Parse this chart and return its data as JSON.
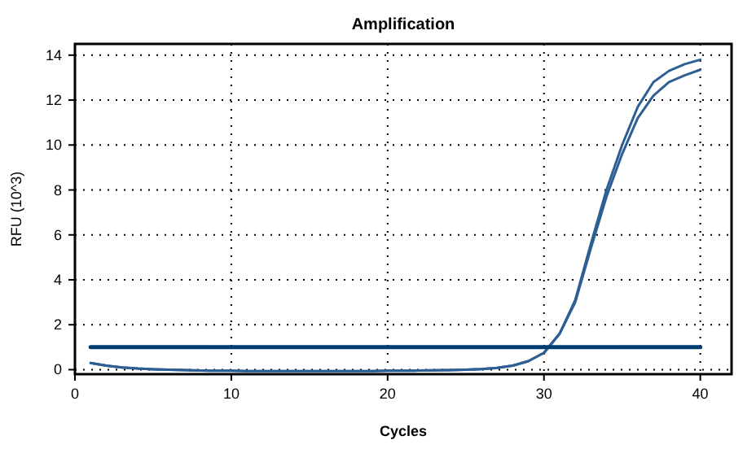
{
  "chart_data": {
    "type": "line",
    "title": "Amplification",
    "xlabel": "Cycles",
    "ylabel": "RFU (10^3)",
    "xlim": [
      0,
      42
    ],
    "xticks": [
      0,
      10,
      20,
      30,
      40
    ],
    "ylim": [
      -0.2,
      14.5
    ],
    "yticks": [
      0,
      2,
      4,
      6,
      8,
      10,
      12,
      14
    ],
    "grid": true,
    "marker": "none",
    "line_style": "solid",
    "x": [
      1,
      2,
      3,
      4,
      5,
      6,
      7,
      8,
      9,
      10,
      11,
      12,
      13,
      14,
      15,
      16,
      17,
      18,
      19,
      20,
      21,
      22,
      23,
      24,
      25,
      26,
      27,
      28,
      29,
      30,
      31,
      32,
      33,
      34,
      35,
      36,
      37,
      38,
      39,
      40
    ],
    "series": [
      {
        "color": "#2e5f94",
        "values": [
          0.3,
          0.18,
          0.1,
          0.05,
          0.02,
          0,
          -0.02,
          -0.04,
          -0.05,
          -0.05,
          -0.06,
          -0.06,
          -0.06,
          -0.06,
          -0.06,
          -0.06,
          -0.06,
          -0.06,
          -0.06,
          -0.05,
          -0.05,
          -0.04,
          -0.03,
          -0.02,
          0,
          0.03,
          0.08,
          0.18,
          0.38,
          0.75,
          1.6,
          3.1,
          5.6,
          8.0,
          10.0,
          11.7,
          12.8,
          13.3,
          13.6,
          13.8
        ]
      },
      {
        "color": "#2e5f94",
        "values": [
          0.3,
          0.18,
          0.1,
          0.05,
          0.02,
          0,
          -0.02,
          -0.04,
          -0.05,
          -0.05,
          -0.06,
          -0.06,
          -0.06,
          -0.06,
          -0.06,
          -0.06,
          -0.06,
          -0.06,
          -0.06,
          -0.05,
          -0.05,
          -0.04,
          -0.03,
          -0.02,
          0,
          0.03,
          0.08,
          0.18,
          0.38,
          0.75,
          1.6,
          3.0,
          5.4,
          7.7,
          9.6,
          11.2,
          12.2,
          12.8,
          13.1,
          13.35
        ]
      },
      {
        "color": "#003d73",
        "x": [
          1,
          40
        ],
        "values": [
          1,
          1
        ]
      }
    ]
  }
}
